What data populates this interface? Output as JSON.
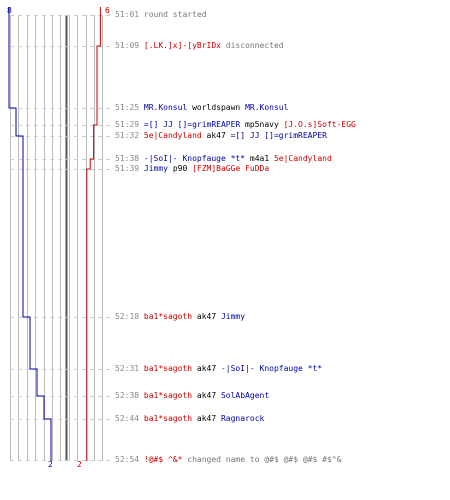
{
  "scores": {
    "blue_start": "8",
    "red_start": "6",
    "blue_end": "2",
    "red_end": "2"
  },
  "colors": {
    "blue_team": "#0000aa",
    "red_team": "#cc0000",
    "timestamp": "#888888",
    "grid": "#bbbbbb",
    "grid_center": "#555555"
  },
  "events": [
    {
      "time": "51:01",
      "parts": [
        {
          "t": "round started",
          "c": "gry"
        }
      ]
    },
    {
      "time": "51:09",
      "parts": [
        {
          "t": "[.LK.]x]-[yBrIDx",
          "c": "red"
        },
        {
          "t": " disconnected",
          "c": "gry"
        }
      ]
    },
    {
      "time": "51:25",
      "parts": [
        {
          "t": "MR.Konsul",
          "c": "blue"
        },
        {
          "t": " worldspawn ",
          "c": "blk"
        },
        {
          "t": "MR.Konsul",
          "c": "blue"
        }
      ]
    },
    {
      "time": "51:29",
      "parts": [
        {
          "t": "=[] JJ []=grimREAPER",
          "c": "blue"
        },
        {
          "t": " mp5navy ",
          "c": "blk"
        },
        {
          "t": "[J.O.s]Soft-EGG",
          "c": "red"
        }
      ]
    },
    {
      "time": "51:32",
      "parts": [
        {
          "t": "5e|Candyland",
          "c": "red"
        },
        {
          "t": " ak47 ",
          "c": "blk"
        },
        {
          "t": "=[] JJ []=grimREAPER",
          "c": "blue"
        }
      ]
    },
    {
      "time": "51:38",
      "parts": [
        {
          "t": "-|SoI|- Knopfauge *t*",
          "c": "blue"
        },
        {
          "t": " m4a1 ",
          "c": "blk"
        },
        {
          "t": "5e|Candyland",
          "c": "red"
        }
      ]
    },
    {
      "time": "51:39",
      "parts": [
        {
          "t": "Jimmy",
          "c": "blue"
        },
        {
          "t": " p90 ",
          "c": "blk"
        },
        {
          "t": "[FZM]BaGGe FuDDa",
          "c": "red"
        }
      ]
    },
    {
      "time": "52:18",
      "parts": [
        {
          "t": "ba1*sagoth",
          "c": "red"
        },
        {
          "t": " ak47 ",
          "c": "blk"
        },
        {
          "t": "Jimmy",
          "c": "blue"
        }
      ]
    },
    {
      "time": "52:31",
      "parts": [
        {
          "t": "ba1*sagoth",
          "c": "red"
        },
        {
          "t": " ak47 ",
          "c": "blk"
        },
        {
          "t": "-|SoI|- Knopfauge *t*",
          "c": "blue"
        }
      ]
    },
    {
      "time": "52:38",
      "parts": [
        {
          "t": "ba1*sagoth",
          "c": "red"
        },
        {
          "t": " ak47 ",
          "c": "blk"
        },
        {
          "t": "SolAbAgent",
          "c": "blue"
        }
      ]
    },
    {
      "time": "52:44",
      "parts": [
        {
          "t": "ba1*sagoth",
          "c": "red"
        },
        {
          "t": " ak47 ",
          "c": "blk"
        },
        {
          "t": "Ragnarock",
          "c": "blue"
        }
      ]
    },
    {
      "time": "52:54",
      "parts": [
        {
          "t": "!@#$ ^&*",
          "c": "red"
        },
        {
          "t": " changed name to @#$ @#$ @#$ #$^&",
          "c": "gry"
        }
      ]
    }
  ],
  "chart_data": {
    "type": "line",
    "x_unit": "time (mm:ss)",
    "series": [
      {
        "team": "blue",
        "steps": [
          {
            "time": "51:01",
            "alive": 8
          },
          {
            "time": "51:25",
            "alive": 7
          },
          {
            "time": "51:29",
            "alive": 7
          },
          {
            "time": "51:32",
            "alive": 6
          },
          {
            "time": "51:38",
            "alive": 6
          },
          {
            "time": "51:39",
            "alive": 6
          },
          {
            "time": "52:18",
            "alive": 5
          },
          {
            "time": "52:31",
            "alive": 4
          },
          {
            "time": "52:38",
            "alive": 3
          },
          {
            "time": "52:44",
            "alive": 2
          },
          {
            "time": "52:54",
            "alive": 2
          }
        ]
      },
      {
        "team": "red",
        "steps": [
          {
            "time": "51:01",
            "alive": 6
          },
          {
            "time": "51:09",
            "alive": 5
          },
          {
            "time": "51:29",
            "alive": 4
          },
          {
            "time": "51:38",
            "alive": 3
          },
          {
            "time": "51:39",
            "alive": 2
          },
          {
            "time": "52:54",
            "alive": 2
          }
        ]
      }
    ]
  }
}
